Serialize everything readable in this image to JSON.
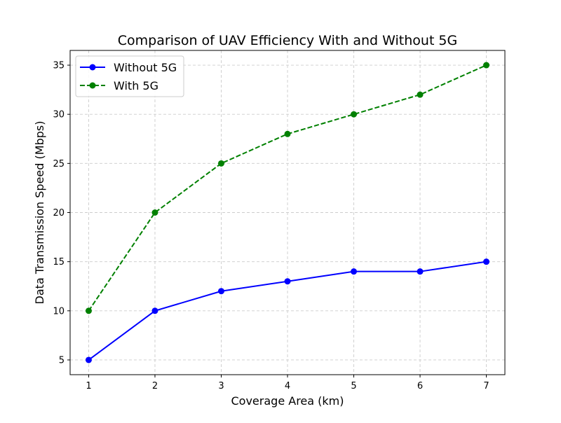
{
  "chart_data": {
    "type": "line",
    "title": "Comparison of UAV Efficiency With and Without 5G",
    "xlabel": "Coverage Area (km)",
    "ylabel": "Data Transmission Speed (Mbps)",
    "x": [
      1,
      2,
      3,
      4,
      5,
      6,
      7
    ],
    "xlim": [
      0.72,
      7.28
    ],
    "ylim": [
      3.5,
      36.5
    ],
    "xticks": [
      "1",
      "2",
      "3",
      "4",
      "5",
      "6",
      "7"
    ],
    "yticks": [
      "5",
      "10",
      "15",
      "20",
      "25",
      "30",
      "35"
    ],
    "grid": true,
    "grid_style": "dashed",
    "legend_position": "top-left",
    "series": [
      {
        "name": "Without 5G",
        "values": [
          5,
          10,
          12,
          13,
          14,
          14,
          15
        ],
        "color": "#0000ff",
        "line_style": "solid",
        "marker": "circle"
      },
      {
        "name": "With 5G",
        "values": [
          10,
          20,
          25,
          28,
          30,
          32,
          35
        ],
        "color": "#008000",
        "line_style": "dashed",
        "marker": "circle"
      }
    ]
  }
}
